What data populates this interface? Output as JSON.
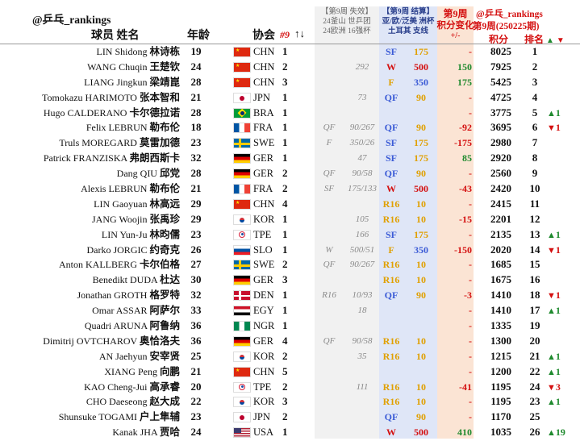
{
  "header": {
    "handle": "@乒乓_rankings",
    "col_player": "球员 姓名",
    "col_age": "年龄",
    "col_assoc": "协会",
    "col_sort": "#9",
    "sort_arrows": "↑↓",
    "lost_title": "【第9周 失效】",
    "lost_sub1": "24釜山 世乒团",
    "lost_sub2": "24欧洲 16强杯",
    "result_title": "【第9周 结算】",
    "result_sub1": "亚/欧/泛美 洲杯",
    "result_sub2": "土耳其 支线",
    "change_title1": "第9周",
    "change_title2": "积分变化",
    "change_sub": "+/-",
    "right_handle": "@乒乓_rankings",
    "right_week": "第9周(250225期)",
    "col_points": "积分",
    "col_rank": "排名",
    "rank_arrows_up": "▲",
    "rank_arrows_down": "▼"
  },
  "colors": {
    "lost_bg": "#f0f0f0",
    "result_bg": "#dfe6f7",
    "change_bg": "#fbe4d4",
    "red": "#d41010",
    "green": "#1f8a2e",
    "orange": "#e0a000",
    "blue": "#3b5bd6"
  },
  "rows": [
    {
      "en": "LIN Shidong",
      "cn": "林诗栋",
      "age": "19",
      "country": "CHN",
      "idx": "1",
      "wc": "",
      "wcs": "",
      "r": "SF",
      "p": "175",
      "ch": "-",
      "pts": "8025",
      "rank": "1",
      "mv": "",
      "dir": ""
    },
    {
      "en": "WANG Chuqin",
      "cn": "王楚钦",
      "age": "24",
      "country": "CHN",
      "idx": "2",
      "wc": "",
      "wcs": "292",
      "r": "W",
      "p": "500",
      "ch": "150",
      "pts": "7925",
      "rank": "2",
      "mv": "",
      "dir": ""
    },
    {
      "en": "LIANG Jingkun",
      "cn": "梁靖崑",
      "age": "28",
      "country": "CHN",
      "idx": "3",
      "wc": "",
      "wcs": "",
      "r": "F",
      "p": "350",
      "ch": "175",
      "pts": "5425",
      "rank": "3",
      "mv": "",
      "dir": ""
    },
    {
      "en": "Tomokazu HARIMOTO",
      "cn": "张本智和",
      "age": "21",
      "country": "JPN",
      "idx": "1",
      "wc": "",
      "wcs": "73",
      "r": "QF",
      "p": "90",
      "ch": "-",
      "pts": "4725",
      "rank": "4",
      "mv": "",
      "dir": ""
    },
    {
      "en": "Hugo CALDERANO",
      "cn": "卡尔德拉诺",
      "age": "28",
      "country": "BRA",
      "idx": "1",
      "wc": "",
      "wcs": "",
      "r": "",
      "p": "",
      "ch": "-",
      "pts": "3775",
      "rank": "5",
      "mv": "1",
      "dir": "up"
    },
    {
      "en": "Felix LEBRUN",
      "cn": "勒布伦",
      "age": "18",
      "country": "FRA",
      "idx": "1",
      "wc": "QF",
      "wcs": "90/267",
      "r": "QF",
      "p": "90",
      "ch": "-92",
      "pts": "3695",
      "rank": "6",
      "mv": "1",
      "dir": "down"
    },
    {
      "en": "Truls MOREGARD",
      "cn": "莫雷加德",
      "age": "23",
      "country": "SWE",
      "idx": "1",
      "wc": "F",
      "wcs": "350/26",
      "r": "SF",
      "p": "175",
      "ch": "-175",
      "pts": "2980",
      "rank": "7",
      "mv": "",
      "dir": ""
    },
    {
      "en": "Patrick FRANZISKA",
      "cn": "弗朗西斯卡",
      "age": "32",
      "country": "GER",
      "idx": "1",
      "wc": "",
      "wcs": "47",
      "r": "SF",
      "p": "175",
      "ch": "85",
      "pts": "2920",
      "rank": "8",
      "mv": "",
      "dir": ""
    },
    {
      "en": "Dang QIU",
      "cn": "邱党",
      "age": "28",
      "country": "GER",
      "idx": "2",
      "wc": "QF",
      "wcs": "90/58",
      "r": "QF",
      "p": "90",
      "ch": "-",
      "pts": "2560",
      "rank": "9",
      "mv": "",
      "dir": ""
    },
    {
      "en": "Alexis LEBRUN",
      "cn": "勒布伦",
      "age": "21",
      "country": "FRA",
      "idx": "2",
      "wc": "SF",
      "wcs": "175/133",
      "r": "W",
      "p": "500",
      "ch": "-43",
      "pts": "2420",
      "rank": "10",
      "mv": "",
      "dir": ""
    },
    {
      "en": "LIN Gaoyuan",
      "cn": "林高远",
      "age": "29",
      "country": "CHN",
      "idx": "4",
      "wc": "",
      "wcs": "",
      "r": "R16",
      "p": "10",
      "ch": "-",
      "pts": "2415",
      "rank": "11",
      "mv": "",
      "dir": ""
    },
    {
      "en": "JANG Woojin",
      "cn": "张禹珍",
      "age": "29",
      "country": "KOR",
      "idx": "1",
      "wc": "",
      "wcs": "105",
      "r": "R16",
      "p": "10",
      "ch": "-15",
      "pts": "2201",
      "rank": "12",
      "mv": "",
      "dir": ""
    },
    {
      "en": "LIN Yun-Ju",
      "cn": "林昀儒",
      "age": "23",
      "country": "TPE",
      "idx": "1",
      "wc": "",
      "wcs": "166",
      "r": "SF",
      "p": "175",
      "ch": "-",
      "pts": "2135",
      "rank": "13",
      "mv": "1",
      "dir": "up"
    },
    {
      "en": "Darko JORGIC",
      "cn": "约奇克",
      "age": "26",
      "country": "SLO",
      "idx": "1",
      "wc": "W",
      "wcs": "500/51",
      "r": "F",
      "p": "350",
      "ch": "-150",
      "pts": "2020",
      "rank": "14",
      "mv": "1",
      "dir": "down"
    },
    {
      "en": "Anton KALLBERG",
      "cn": "卡尔伯格",
      "age": "27",
      "country": "SWE",
      "idx": "2",
      "wc": "QF",
      "wcs": "90/267",
      "r": "R16",
      "p": "10",
      "ch": "-",
      "pts": "1685",
      "rank": "15",
      "mv": "",
      "dir": ""
    },
    {
      "en": "Benedikt DUDA",
      "cn": "杜达",
      "age": "30",
      "country": "GER",
      "idx": "3",
      "wc": "",
      "wcs": "",
      "r": "R16",
      "p": "10",
      "ch": "-",
      "pts": "1675",
      "rank": "16",
      "mv": "",
      "dir": ""
    },
    {
      "en": "Jonathan GROTH",
      "cn": "格罗特",
      "age": "32",
      "country": "DEN",
      "idx": "1",
      "wc": "R16",
      "wcs": "10/93",
      "r": "QF",
      "p": "90",
      "ch": "-3",
      "pts": "1410",
      "rank": "18",
      "mv": "1",
      "dir": "down"
    },
    {
      "en": "Omar ASSAR",
      "cn": "阿萨尔",
      "age": "33",
      "country": "EGY",
      "idx": "1",
      "wc": "",
      "wcs": "18",
      "r": "",
      "p": "",
      "ch": "-",
      "pts": "1410",
      "rank": "17",
      "mv": "1",
      "dir": "up"
    },
    {
      "en": "Quadri ARUNA",
      "cn": "阿鲁纳",
      "age": "36",
      "country": "NGR",
      "idx": "1",
      "wc": "",
      "wcs": "",
      "r": "",
      "p": "",
      "ch": "-",
      "pts": "1335",
      "rank": "19",
      "mv": "",
      "dir": ""
    },
    {
      "en": "Dimitrij OVTCHAROV",
      "cn": "奥恰洛夫",
      "age": "36",
      "country": "GER",
      "idx": "4",
      "wc": "QF",
      "wcs": "90/58",
      "r": "R16",
      "p": "10",
      "ch": "-",
      "pts": "1300",
      "rank": "20",
      "mv": "",
      "dir": ""
    },
    {
      "en": "AN Jaehyun",
      "cn": "安宰贤",
      "age": "25",
      "country": "KOR",
      "idx": "2",
      "wc": "",
      "wcs": "35",
      "r": "R16",
      "p": "10",
      "ch": "-",
      "pts": "1215",
      "rank": "21",
      "mv": "1",
      "dir": "up"
    },
    {
      "en": "XIANG Peng",
      "cn": "向鹏",
      "age": "21",
      "country": "CHN",
      "idx": "5",
      "wc": "",
      "wcs": "",
      "r": "",
      "p": "",
      "ch": "-",
      "pts": "1200",
      "rank": "22",
      "mv": "1",
      "dir": "up"
    },
    {
      "en": "KAO Cheng-Jui",
      "cn": "高承睿",
      "age": "20",
      "country": "TPE",
      "idx": "2",
      "wc": "",
      "wcs": "111",
      "r": "R16",
      "p": "10",
      "ch": "-41",
      "pts": "1195",
      "rank": "24",
      "mv": "3",
      "dir": "down"
    },
    {
      "en": "CHO Daeseong",
      "cn": "赵大成",
      "age": "22",
      "country": "KOR",
      "idx": "3",
      "wc": "",
      "wcs": "",
      "r": "R16",
      "p": "10",
      "ch": "-",
      "pts": "1195",
      "rank": "23",
      "mv": "1",
      "dir": "up"
    },
    {
      "en": "Shunsuke TOGAMI",
      "cn": "户上隼辅",
      "age": "23",
      "country": "JPN",
      "idx": "2",
      "wc": "",
      "wcs": "",
      "r": "QF",
      "p": "90",
      "ch": "-",
      "pts": "1170",
      "rank": "25",
      "mv": "",
      "dir": ""
    },
    {
      "en": "Kanak JHA",
      "cn": "贾哈",
      "age": "24",
      "country": "USA",
      "idx": "1",
      "wc": "",
      "wcs": "",
      "r": "W",
      "p": "500",
      "ch": "410",
      "pts": "1035",
      "rank": "26",
      "mv": "19",
      "dir": "up"
    }
  ]
}
